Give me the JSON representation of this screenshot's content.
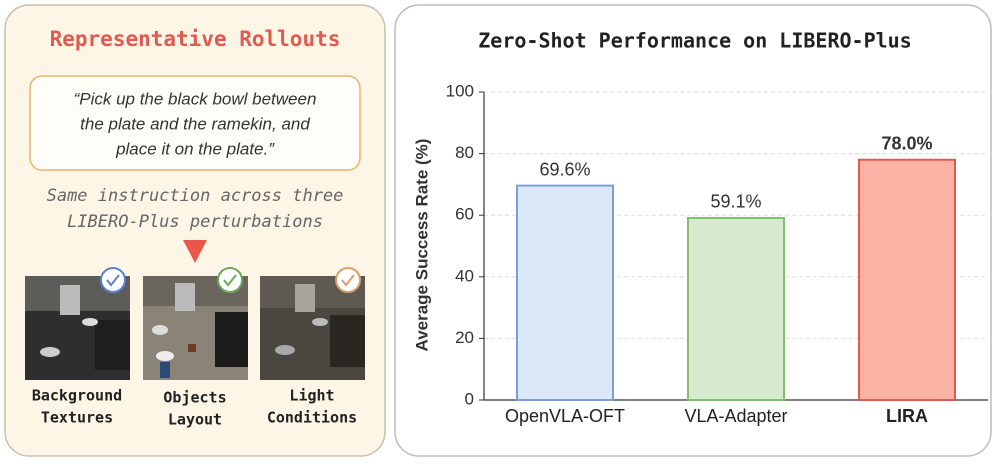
{
  "left_panel": {
    "title": "Representative Rollouts",
    "instruction": [
      "“Pick up the black bowl between",
      "the plate and the ramekin, and",
      "place it on the plate.”"
    ],
    "note": [
      "Same instruction across three",
      "LIBERO-Plus perturbations"
    ],
    "captions": [
      [
        "Background",
        "Textures"
      ],
      [
        "Objects",
        "Layout"
      ],
      [
        "Light",
        "Conditions"
      ]
    ]
  },
  "chart_data": {
    "type": "bar",
    "title": "Zero-Shot Performance on LIBERO-Plus",
    "y_label": "Average Success Rate (%)",
    "categories": [
      "OpenVLA-OFT",
      "VLA-Adapter",
      "LIRA"
    ],
    "values": [
      69.6,
      59.1,
      78.0
    ],
    "value_labels": [
      "69.6%",
      "59.1%",
      "78.0%"
    ],
    "colors": [
      "#dce8fa",
      "#d6ebcd",
      "#f9b2a4"
    ],
    "edge_colors": [
      "#7c9fd6",
      "#86bd74",
      "#e05a55"
    ],
    "ylim": [
      0,
      100
    ],
    "yticks": [
      0,
      20,
      40,
      60,
      80,
      100
    ],
    "grid": true
  }
}
